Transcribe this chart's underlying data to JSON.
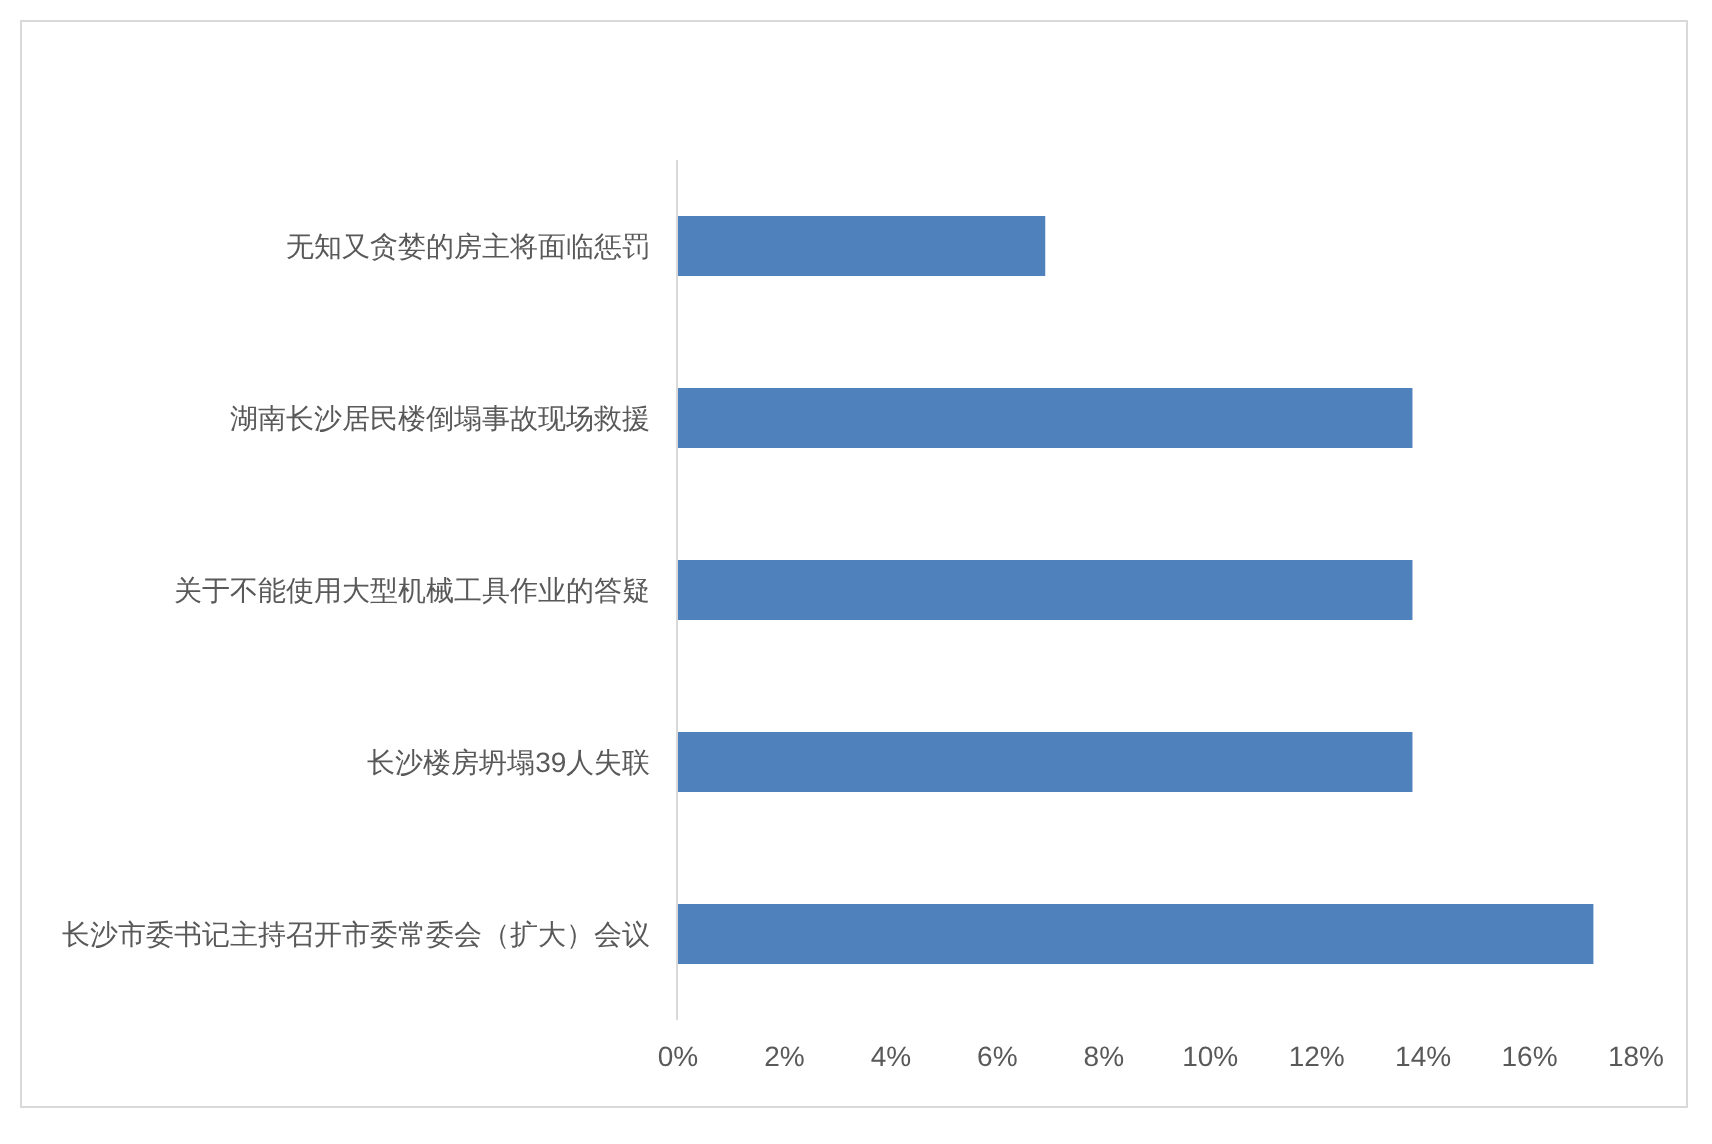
{
  "chart_data": {
    "type": "bar",
    "orientation": "horizontal",
    "categories": [
      "无知又贪婪的房主将面临惩罚",
      "湖南长沙居民楼倒塌事故现场救援",
      "关于不能使用大型机械工具作业的答疑",
      "长沙楼房坍塌39人失联",
      "长沙市委书记主持召开市委常委会（扩大）会议"
    ],
    "values": [
      6.9,
      13.8,
      13.8,
      13.8,
      17.2
    ],
    "color": "#4f81bd",
    "xlim": [
      0,
      18
    ],
    "xticks": [
      {
        "value": 0,
        "label": "0%"
      },
      {
        "value": 2,
        "label": "2%"
      },
      {
        "value": 4,
        "label": "4%"
      },
      {
        "value": 6,
        "label": "6%"
      },
      {
        "value": 8,
        "label": "8%"
      },
      {
        "value": 10,
        "label": "10%"
      },
      {
        "value": 12,
        "label": "12%"
      },
      {
        "value": 14,
        "label": "14%"
      },
      {
        "value": 16,
        "label": "16%"
      },
      {
        "value": 18,
        "label": "18%"
      }
    ]
  }
}
